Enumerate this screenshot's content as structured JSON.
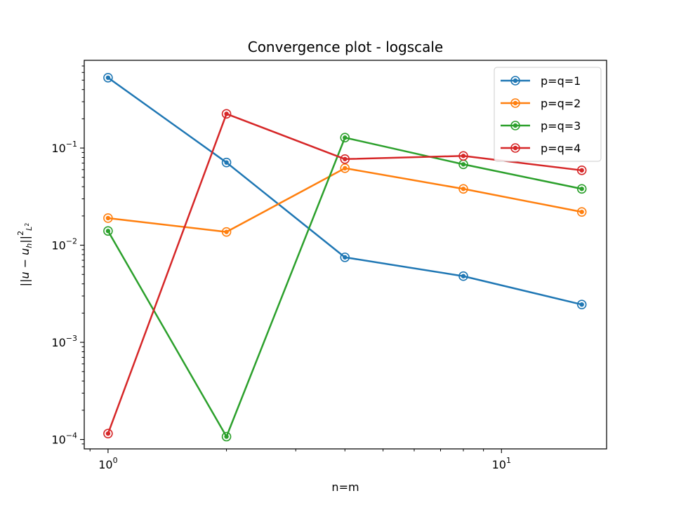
{
  "chart_data": {
    "type": "line",
    "title": "Convergence plot - logscale",
    "xlabel": "n=m",
    "ylabel": "||u − u_h||²_L²",
    "xscale": "log",
    "yscale": "log",
    "xlim": [
      0.87,
      18.5
    ],
    "ylim": [
      8e-05,
      0.8
    ],
    "grid": false,
    "legend_position": "top-right",
    "x": [
      1,
      2,
      4,
      8,
      16
    ],
    "x_ticks": [
      {
        "value": 1,
        "base": "10",
        "exp": "0"
      },
      {
        "value": 10,
        "base": "10",
        "exp": "1"
      }
    ],
    "y_ticks": [
      {
        "value": 0.0001,
        "base": "10",
        "exp": "−4"
      },
      {
        "value": 0.001,
        "base": "10",
        "exp": "−3"
      },
      {
        "value": 0.01,
        "base": "10",
        "exp": "−2"
      },
      {
        "value": 0.1,
        "base": "10",
        "exp": "−1"
      }
    ],
    "series": [
      {
        "name": "p=q=1",
        "color": "#1f77b4",
        "values": [
          0.53,
          0.071,
          0.0075,
          0.0048,
          0.00245
        ]
      },
      {
        "name": "p=q=2",
        "color": "#ff7f0e",
        "values": [
          0.019,
          0.0137,
          0.062,
          0.038,
          0.022
        ]
      },
      {
        "name": "p=q=3",
        "color": "#2ca02c",
        "values": [
          0.014,
          0.000107,
          0.128,
          0.068,
          0.038
        ]
      },
      {
        "name": "p=q=4",
        "color": "#d62728",
        "values": [
          0.000115,
          0.225,
          0.077,
          0.083,
          0.059
        ]
      }
    ]
  }
}
